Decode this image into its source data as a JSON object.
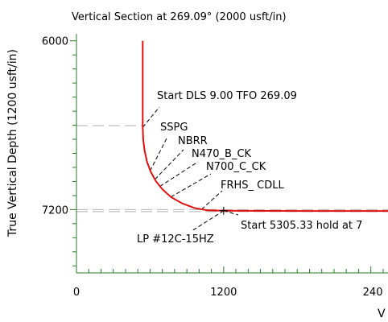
{
  "chart_data": {
    "type": "line",
    "title": "Vertical Section at 269.09° (2000 usft/in)",
    "xlabel": "V",
    "ylabel": "True Vertical Depth (1200 usft/in)",
    "x_ticks": [
      "0",
      "1200",
      "240"
    ],
    "y_ticks": [
      "6000",
      "7200"
    ],
    "xlim": [
      0,
      2540
    ],
    "ylim_inverted": [
      5950,
      7650
    ],
    "grid": false,
    "colors": {
      "trajectory": "#e01010",
      "axis": "#2a7a2a",
      "guide": "#b0b0b0",
      "leader": "#000000"
    },
    "series": [
      {
        "values": [
          {
            "x": 540,
            "y": 6000
          },
          {
            "x": 540,
            "y": 6200
          },
          {
            "x": 540,
            "y": 6400
          },
          {
            "x": 540,
            "y": 6500
          },
          {
            "x": 540,
            "y": 6615
          },
          {
            "x": 544,
            "y": 6700
          },
          {
            "x": 555,
            "y": 6780
          },
          {
            "x": 575,
            "y": 6860
          },
          {
            "x": 605,
            "y": 6930
          },
          {
            "x": 645,
            "y": 6995
          },
          {
            "x": 700,
            "y": 7055
          },
          {
            "x": 770,
            "y": 7110
          },
          {
            "x": 860,
            "y": 7155
          },
          {
            "x": 960,
            "y": 7188
          },
          {
            "x": 1070,
            "y": 7205
          },
          {
            "x": 1200,
            "y": 7208
          },
          {
            "x": 1600,
            "y": 7209
          },
          {
            "x": 2000,
            "y": 7210
          },
          {
            "x": 2540,
            "y": 7210
          }
        ]
      }
    ],
    "annotations": [
      {
        "text": "Start DLS 9.00 TFO 269.09",
        "x": 540,
        "y": 6615
      },
      {
        "text": "SSPG",
        "x": 600,
        "y": 6925
      },
      {
        "text": "NBRR",
        "x": 640,
        "y": 6985
      },
      {
        "text": "N470_B_CK",
        "x": 680,
        "y": 7035
      },
      {
        "text": "N700_C_CK",
        "x": 770,
        "y": 7110
      },
      {
        "text": "FRHS_ CDLL",
        "x": 1020,
        "y": 7198
      },
      {
        "text": "Start 5305.33 hold at 7",
        "x": 1200,
        "y": 7208
      },
      {
        "text": "LP #12C-15HZ",
        "x": 1200,
        "y": 7208
      }
    ]
  }
}
